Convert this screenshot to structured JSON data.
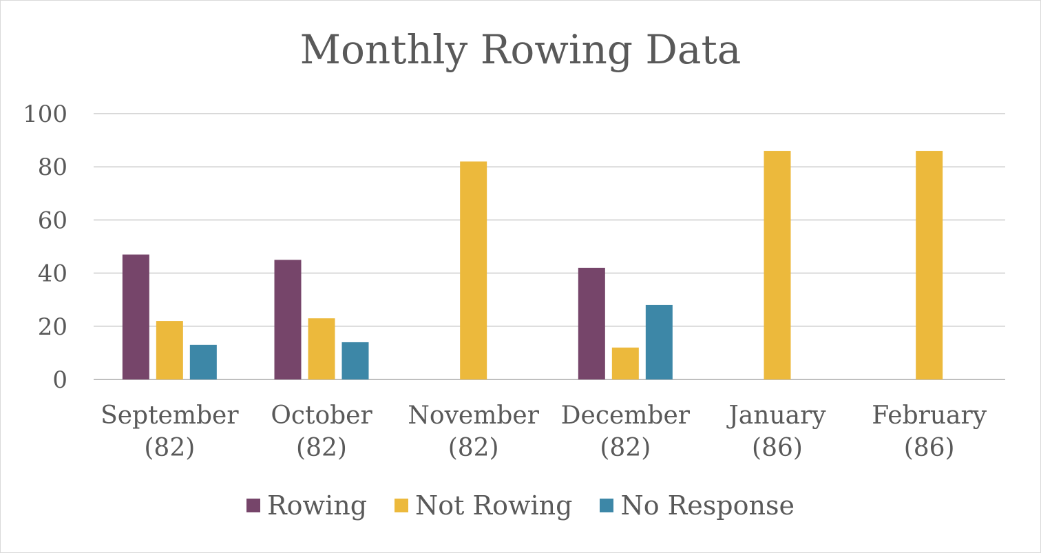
{
  "chart_data": {
    "type": "bar",
    "title": "Monthly Rowing Data",
    "xlabel": "",
    "ylabel": "",
    "ylim": [
      0,
      100
    ],
    "yticks": [
      "0",
      "20",
      "40",
      "60",
      "80",
      "100"
    ],
    "grid": true,
    "legend_position": "bottom",
    "categories": [
      {
        "line1": "September",
        "line2": "(82)"
      },
      {
        "line1": "October",
        "line2": "(82)"
      },
      {
        "line1": "November",
        "line2": "(82)"
      },
      {
        "line1": "December",
        "line2": "(82)"
      },
      {
        "line1": "January",
        "line2": "(86)"
      },
      {
        "line1": "February",
        "line2": "(86)"
      }
    ],
    "series": [
      {
        "name": "Rowing",
        "color": "#76456a",
        "values": [
          47,
          45,
          0,
          42,
          0,
          0
        ]
      },
      {
        "name": "Not Rowing",
        "color": "#ecb93c",
        "values": [
          22,
          23,
          82,
          12,
          86,
          86
        ]
      },
      {
        "name": "No Response",
        "color": "#3d87a7",
        "values": [
          13,
          14,
          0,
          28,
          0,
          0
        ]
      }
    ]
  }
}
